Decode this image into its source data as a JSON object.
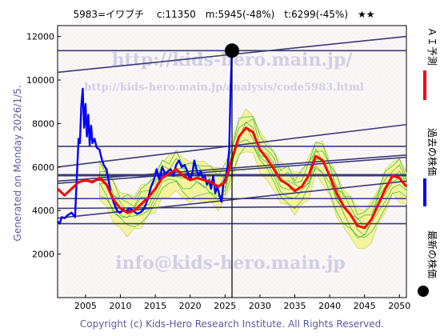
{
  "chart_data": {
    "type": "line",
    "header": "5983=イワブチ　 c:11350　m:5945(-48%)　t:6299(-45%)　★★",
    "xlim": [
      2001,
      2051
    ],
    "ylim": [
      0,
      12500
    ],
    "x_ticks": [
      2005,
      2010,
      2015,
      2020,
      2025,
      2030,
      2035,
      2040,
      2045,
      2050
    ],
    "y_ticks": [
      2000,
      4000,
      6000,
      8000,
      10000,
      12000
    ],
    "left_label": "Generated on Monday 2026/1/5.",
    "legend": [
      {
        "label": "ＡＩ予測",
        "color": "#ff0000"
      },
      {
        "label": "過去の株価",
        "color": "#0000ff"
      },
      {
        "label": "最新の株価",
        "color": "#000000"
      }
    ],
    "watermarks": [
      "http://kids-hero.main.jp/",
      "http://kids-hero.main.jp/analysis/code5983.html",
      "info@kids-hero.main.jp"
    ],
    "copyright": "Copyright (c) Kids-Hero Research Institute. All Rights Reserved.",
    "latest_point": {
      "x": 2026.0,
      "y": 11350
    },
    "cursor_x": 2026.0,
    "trend_lines": [
      {
        "p1": [
          2001,
          11350
        ],
        "p2": [
          2051,
          11350
        ]
      },
      {
        "p1": [
          2001,
          10350
        ],
        "p2": [
          2051,
          12000
        ]
      },
      {
        "p1": [
          2001,
          6950
        ],
        "p2": [
          2051,
          6950
        ]
      },
      {
        "p1": [
          2001,
          6000
        ],
        "p2": [
          2051,
          7950
        ]
      },
      {
        "p1": [
          2001,
          5650
        ],
        "p2": [
          2051,
          5650
        ]
      },
      {
        "p1": [
          2001,
          5600
        ],
        "p2": [
          2051,
          5600
        ]
      },
      {
        "p1": [
          2001,
          5350
        ],
        "p2": [
          2051,
          6550
        ]
      },
      {
        "p1": [
          2001,
          5250
        ],
        "p2": [
          2051,
          6450
        ]
      },
      {
        "p1": [
          2001,
          4550
        ],
        "p2": [
          2051,
          4550
        ]
      },
      {
        "p1": [
          2001,
          4100
        ],
        "p2": [
          2051,
          4200
        ]
      },
      {
        "p1": [
          2001,
          3650
        ],
        "p2": [
          2051,
          5350
        ]
      },
      {
        "p1": [
          2001,
          3400
        ],
        "p2": [
          2051,
          3400
        ]
      }
    ],
    "series": [
      {
        "name": "過去の株価",
        "color": "#0000ff",
        "x": [
          2001.0,
          2001.3,
          2001.6,
          2002.0,
          2002.5,
          2003.0,
          2003.5,
          2004.0,
          2004.2,
          2004.4,
          2004.6,
          2004.8,
          2005.0,
          2005.2,
          2005.4,
          2005.6,
          2005.8,
          2006.0,
          2006.3,
          2006.6,
          2007.0,
          2007.3,
          2007.6,
          2008.0,
          2008.3,
          2008.6,
          2009.0,
          2009.3,
          2009.6,
          2010.0,
          2010.4,
          2010.8,
          2011.2,
          2011.6,
          2012.0,
          2012.4,
          2012.8,
          2013.2,
          2013.6,
          2014.0,
          2014.4,
          2014.8,
          2015.2,
          2015.6,
          2016.0,
          2016.4,
          2016.8,
          2017.2,
          2017.6,
          2018.0,
          2018.4,
          2018.8,
          2019.2,
          2019.6,
          2020.0,
          2020.3,
          2020.6,
          2020.9,
          2021.2,
          2021.5,
          2021.8,
          2022.1,
          2022.4,
          2022.7,
          2023.0,
          2023.3,
          2023.6,
          2023.9,
          2024.2,
          2024.5,
          2024.8,
          2025.1,
          2025.4,
          2025.6,
          2025.8,
          2026.0
        ],
        "y": [
          3500,
          3400,
          3700,
          3650,
          3800,
          3900,
          3700,
          7300,
          7100,
          8800,
          9600,
          7800,
          8900,
          7400,
          8400,
          7000,
          7900,
          7100,
          7300,
          6900,
          6800,
          6400,
          6100,
          5900,
          5400,
          4800,
          4400,
          4150,
          3950,
          3900,
          4050,
          3950,
          4100,
          4050,
          3950,
          3850,
          3900,
          4000,
          4250,
          4600,
          5100,
          5400,
          5900,
          5400,
          6000,
          5700,
          5800,
          5900,
          5600,
          6100,
          6300,
          6000,
          6100,
          5800,
          5400,
          5700,
          6300,
          5900,
          5600,
          5800,
          5500,
          5600,
          5200,
          5400,
          5000,
          5600,
          4800,
          5100,
          4700,
          4400,
          5300,
          5500,
          6100,
          6800,
          9700,
          11350
        ]
      },
      {
        "name": "ＡＩ予測",
        "color": "#ff0000",
        "x": [
          2001.0,
          2002.0,
          2003.0,
          2004.0,
          2005.0,
          2006.0,
          2007.0,
          2008.0,
          2009.0,
          2010.0,
          2011.0,
          2012.0,
          2013.0,
          2014.0,
          2015.0,
          2016.0,
          2017.0,
          2018.0,
          2019.0,
          2020.0,
          2021.0,
          2022.0,
          2023.0,
          2024.0,
          2025.0,
          2026.0,
          2027.0,
          2028.0,
          2029.0,
          2030.0,
          2031.0,
          2032.0,
          2033.0,
          2034.0,
          2035.0,
          2036.0,
          2037.0,
          2038.0,
          2039.0,
          2040.0,
          2041.0,
          2042.0,
          2043.0,
          2044.0,
          2045.0,
          2046.0,
          2047.0,
          2048.0,
          2049.0,
          2050.0,
          2051.0
        ],
        "y": [
          5000,
          4700,
          5000,
          5300,
          5400,
          5300,
          5500,
          5200,
          4500,
          4100,
          3900,
          4000,
          4300,
          4600,
          5000,
          5500,
          5700,
          5900,
          5600,
          5400,
          5500,
          5400,
          5300,
          5100,
          5300,
          6400,
          7400,
          7800,
          7600,
          6800,
          6400,
          5900,
          5400,
          5200,
          4900,
          5100,
          5600,
          6500,
          6300,
          5600,
          4800,
          4200,
          3800,
          3300,
          3200,
          3600,
          4300,
          5000,
          5600,
          5500,
          5100
        ]
      }
    ]
  }
}
